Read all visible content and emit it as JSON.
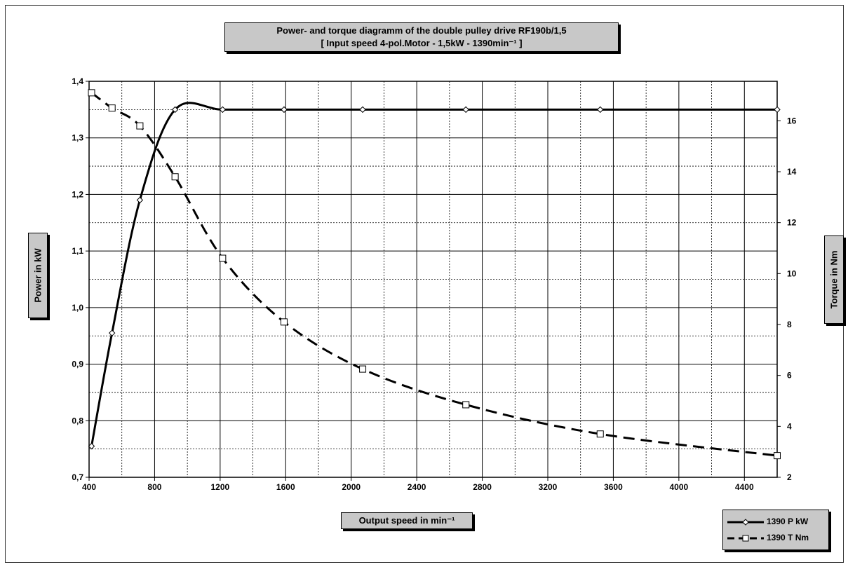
{
  "title": {
    "line1": "Power- and torque diagramm of the double pulley drive RF190b/1,5",
    "line2": "[ Input speed 4-pol.Motor - 1,5kW - 1390min⁻¹ ]"
  },
  "axes": {
    "left_label": "Power in kW",
    "right_label": "Torque in Nm",
    "x_label": "Output speed in min⁻¹"
  },
  "legend": {
    "power": "1390 P kW",
    "torque": "1390 T Nm"
  },
  "chart_data": {
    "type": "line",
    "x_ticks": [
      400,
      800,
      1200,
      1600,
      2000,
      2400,
      2800,
      3200,
      3600,
      4000,
      4400
    ],
    "y_left_ticks": [
      "0,7",
      "0,8",
      "0,9",
      "1,0",
      "1,1",
      "1,2",
      "1,3",
      "1,4"
    ],
    "y_right_ticks": [
      "2",
      "4",
      "6",
      "8",
      "10",
      "12",
      "14",
      "16"
    ],
    "xlim": [
      400,
      4600
    ],
    "ylim_left": [
      0.7,
      1.4
    ],
    "ylim_right": [
      2,
      17.55
    ],
    "grid": true,
    "legend_position": "bottom-right",
    "series": [
      {
        "name": "1390 P kW",
        "axis": "left",
        "style": "solid",
        "marker": "diamond",
        "x": [
          415,
          540,
          710,
          925,
          1215,
          1590,
          2070,
          2700,
          3520,
          4600
        ],
        "y": [
          0.755,
          0.955,
          1.19,
          1.35,
          1.35,
          1.35,
          1.35,
          1.35,
          1.35,
          1.35
        ]
      },
      {
        "name": "1390 T Nm",
        "axis": "right",
        "style": "dashed",
        "marker": "square",
        "x": [
          415,
          540,
          710,
          925,
          1215,
          1590,
          2070,
          2700,
          3520,
          4600
        ],
        "y": [
          17.1,
          16.5,
          15.8,
          13.8,
          10.6,
          8.1,
          6.25,
          4.85,
          3.7,
          2.85
        ]
      }
    ]
  }
}
